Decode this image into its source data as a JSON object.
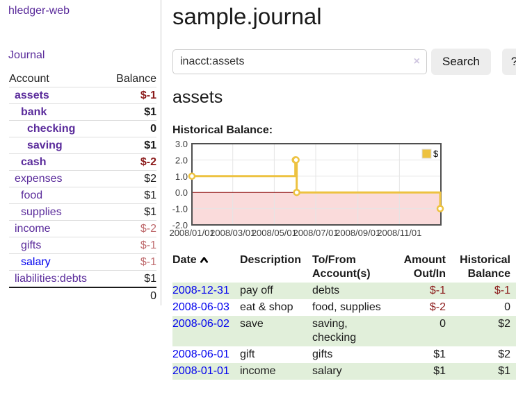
{
  "app": {
    "title": "hledger-web"
  },
  "colors": {
    "link_purple": "#5a2b9b",
    "link_blue": "#0000ee",
    "negative": "#8b1a1a",
    "negative_soft": "#bf6b6e",
    "row_stripe_green": "#e1efda",
    "chart_series_yellow": "#EDC240",
    "chart_negative_region_pink": "#fadbdb",
    "chart_zero_line_red": "#8b0000"
  },
  "sidebar": {
    "nav_journal": "Journal",
    "accounts": {
      "headers": {
        "account": "Account",
        "balance": "Balance"
      },
      "rows": [
        {
          "name": "assets",
          "depth": 1,
          "bold": true,
          "link_color": "purple",
          "balance": "$-1",
          "balance_style": "negative"
        },
        {
          "name": "bank",
          "depth": 2,
          "bold": true,
          "link_color": "purple",
          "balance": "$1",
          "balance_style": "normal"
        },
        {
          "name": "checking",
          "depth": 3,
          "bold": true,
          "link_color": "purple",
          "balance": "0",
          "balance_style": "normal"
        },
        {
          "name": "saving",
          "depth": 3,
          "bold": true,
          "link_color": "purple",
          "balance": "$1",
          "balance_style": "normal"
        },
        {
          "name": "cash",
          "depth": 2,
          "bold": true,
          "link_color": "purple",
          "balance": "$-2",
          "balance_style": "negative"
        },
        {
          "name": "expenses",
          "depth": 1,
          "bold": false,
          "link_color": "purple",
          "balance": "$2",
          "balance_style": "normal"
        },
        {
          "name": "food",
          "depth": 2,
          "bold": false,
          "link_color": "purple",
          "balance": "$1",
          "balance_style": "normal"
        },
        {
          "name": "supplies",
          "depth": 2,
          "bold": false,
          "link_color": "purple",
          "balance": "$1",
          "balance_style": "normal"
        },
        {
          "name": "income",
          "depth": 1,
          "bold": false,
          "link_color": "purple",
          "balance": "$-2",
          "balance_style": "negative-soft"
        },
        {
          "name": "gifts",
          "depth": 2,
          "bold": false,
          "link_color": "purple",
          "balance": "$-1",
          "balance_style": "negative-soft"
        },
        {
          "name": "salary",
          "depth": 2,
          "bold": false,
          "link_color": "blue",
          "balance": "$-1",
          "balance_style": "negative-soft"
        },
        {
          "name": "liabilities:debts",
          "depth": 1,
          "bold": false,
          "link_color": "purple",
          "balance": "$1",
          "balance_style": "normal"
        }
      ],
      "total": "0"
    }
  },
  "main": {
    "title": "sample.journal",
    "search": {
      "value": "inacct:assets",
      "clear_label": "×",
      "button_label": "Search",
      "help_label": "?"
    },
    "account_heading": "assets",
    "chart_heading": "Historical Balance:",
    "register": {
      "headers": {
        "date": "Date",
        "description": "Description",
        "to_from": "To/From\nAccount(s)",
        "amount": "Amount\nOut/In",
        "balance": "Historical\nBalance"
      },
      "sort_icon": "chevron-up",
      "rows": [
        {
          "date": "2008-12-31",
          "description": "pay off",
          "to_from": "debts",
          "amount": "$-1",
          "amount_style": "negative",
          "balance": "$-1",
          "balance_style": "negative",
          "stripe": true
        },
        {
          "date": "2008-06-03",
          "description": "eat & shop",
          "to_from": "food, supplies",
          "amount": "$-2",
          "amount_style": "negative",
          "balance": "0",
          "balance_style": "normal",
          "stripe": false
        },
        {
          "date": "2008-06-02",
          "description": "save",
          "to_from": "saving,\nchecking",
          "amount": "0",
          "amount_style": "normal",
          "balance": "$2",
          "balance_style": "normal",
          "stripe": true
        },
        {
          "date": "2008-06-01",
          "description": "gift",
          "to_from": "gifts",
          "amount": "$1",
          "amount_style": "normal",
          "balance": "$2",
          "balance_style": "normal",
          "stripe": false
        },
        {
          "date": "2008-01-01",
          "description": "income",
          "to_from": "salary",
          "amount": "$1",
          "amount_style": "normal",
          "balance": "$1",
          "balance_style": "normal",
          "stripe": true
        }
      ]
    }
  },
  "chart_data": {
    "type": "line",
    "step": true,
    "title": "Historical Balance:",
    "xlim": [
      "2008-01-01",
      "2009-01-01"
    ],
    "ylim": [
      -2,
      3
    ],
    "grid": true,
    "legend_position": "top-right",
    "series": [
      {
        "name": "$",
        "color": "#EDC240",
        "points": [
          [
            "2008-01-01",
            1
          ],
          [
            "2008-06-01",
            2
          ],
          [
            "2008-06-02",
            2
          ],
          [
            "2008-06-03",
            0
          ],
          [
            "2008-12-31",
            -1
          ]
        ]
      }
    ],
    "x_ticks": [
      {
        "date": "2008-01-01",
        "label": "2008/01/01"
      },
      {
        "date": "2008-03-01",
        "label": "2008/03/01"
      },
      {
        "date": "2008-05-01",
        "label": "2008/05/01"
      },
      {
        "date": "2008-07-01",
        "label": "2008/07/01"
      },
      {
        "date": "2008-09-01",
        "label": "2008/09/01"
      },
      {
        "date": "2008-11-01",
        "label": "2008/11/01"
      }
    ],
    "y_ticks": [
      -2,
      -1,
      0,
      1,
      2,
      3
    ],
    "y_tick_labels": [
      "-2.0",
      "-1.0",
      "0.0",
      "1.0",
      "2.0",
      "3.0"
    ],
    "negative_region_color": "#fadbdb",
    "zero_line_color": "#8b0000",
    "gridline_color": "#e5e5e5",
    "border_color": "#4f4f4f"
  }
}
